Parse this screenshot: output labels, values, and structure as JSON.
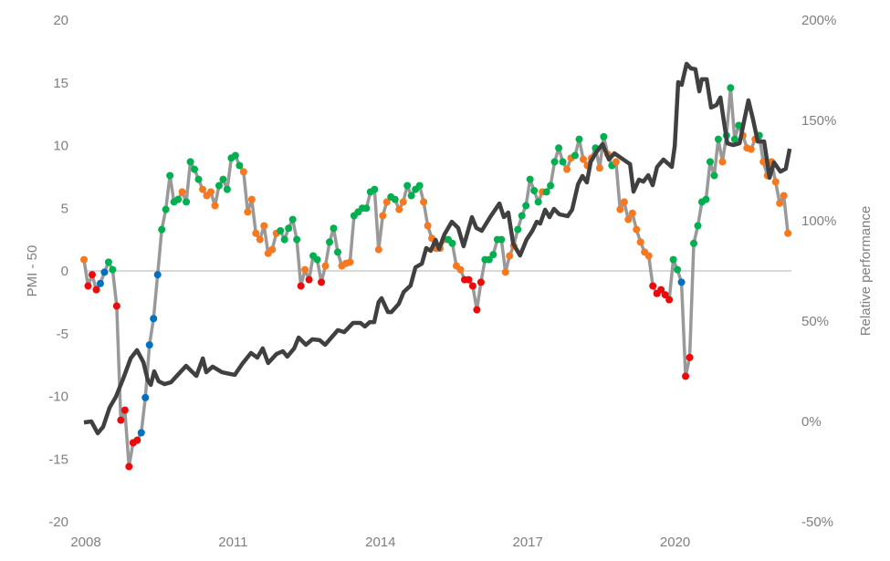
{
  "chart_data": {
    "type": "line",
    "title": "",
    "xlabel": "",
    "ylabel": "PMI - 50",
    "ylabel_right": "Relative performance",
    "x_ticks": [
      "2008",
      "2011",
      "2014",
      "2017",
      "2020"
    ],
    "x_tick_values": [
      2008,
      2011,
      2014,
      2017,
      2020
    ],
    "xlim": [
      2008,
      2022.4
    ],
    "ylim": [
      -20,
      20
    ],
    "y_ticks": [
      "20",
      "15",
      "10",
      "5",
      "0",
      "-5",
      "-10",
      "-15",
      "-20"
    ],
    "y_tick_values": [
      20,
      15,
      10,
      5,
      0,
      -5,
      -10,
      -15,
      -20
    ],
    "ylim_right": [
      -50,
      200
    ],
    "y_ticks_right": [
      "200%",
      "150%",
      "100%",
      "50%",
      "0%",
      "-50%"
    ],
    "y_tick_values_right": [
      200,
      150,
      100,
      50,
      0,
      -50
    ],
    "zero_line": true,
    "grid": false,
    "legend": "none",
    "category_colors": {
      "O": "#f7791f",
      "G": "#00b050",
      "R": "#ec0a0a",
      "B": "#0070c0"
    },
    "line_colors": {
      "pmi": "#999999",
      "relative": "#404040"
    },
    "series": [
      {
        "name": "PMI - 50",
        "axis": "left",
        "start": 2008,
        "frequency": "monthly",
        "values": [
          0.9,
          -1.2,
          -0.3,
          -1.5,
          -1.0,
          -0.1,
          0.7,
          0.1,
          -2.8,
          -11.9,
          -11.1,
          -15.6,
          -13.7,
          -13.5,
          -12.9,
          -10.1,
          -5.9,
          -3.8,
          -0.3,
          3.3,
          4.9,
          7.6,
          5.5,
          5.7,
          6.3,
          5.5,
          8.7,
          8.1,
          7.3,
          6.5,
          6.0,
          6.3,
          5.2,
          6.8,
          7.3,
          6.5,
          9.0,
          9.2,
          8.4,
          7.9,
          4.7,
          5.7,
          3.0,
          2.5,
          3.6,
          1.4,
          1.7,
          3.0,
          3.2,
          2.5,
          3.4,
          4.1,
          2.5,
          -1.2,
          0.1,
          -0.7,
          1.2,
          0.9,
          -0.9,
          0.4,
          2.3,
          3.4,
          1.5,
          0.4,
          0.6,
          0.7,
          4.4,
          4.7,
          5.0,
          5.0,
          6.3,
          6.5,
          1.7,
          4.4,
          5.5,
          5.9,
          5.7,
          4.9,
          5.5,
          6.8,
          6.0,
          6.5,
          6.8,
          5.5,
          3.6,
          2.6,
          1.8,
          1.8,
          2.5,
          2.5,
          2.2,
          0.4,
          0.1,
          -0.7,
          -0.7,
          -1.2,
          -3.1,
          -0.9,
          0.9,
          0.9,
          1.3,
          2.5,
          2.5,
          -0.1,
          1.2,
          2.0,
          3.3,
          4.4,
          5.2,
          7.3,
          6.4,
          5.5,
          6.3,
          6.3,
          6.8,
          8.7,
          9.8,
          8.7,
          8.1,
          9.0,
          9.2,
          10.5,
          8.9,
          8.4,
          9.0,
          9.8,
          8.2,
          10.7,
          9.3,
          8.4,
          8.7,
          4.9,
          5.5,
          4.1,
          4.6,
          3.3,
          2.3,
          1.5,
          1.2,
          -1.2,
          -1.8,
          -1.5,
          -1.9,
          -2.3,
          0.9,
          0.1,
          -0.9,
          -8.4,
          -6.9,
          2.2,
          3.6,
          5.5,
          5.7,
          8.7,
          7.6,
          10.5,
          8.7,
          10.8,
          14.6,
          10.5,
          11.6,
          10.8,
          9.8,
          9.7,
          10.5,
          10.8,
          8.7,
          7.6,
          8.7,
          7.1,
          5.4,
          6.0,
          3.0
        ],
        "categories": "ORRRBBGGRRRRRRBBBBBGGGGGOGGGGOOOOGGGGGGOOOOOOOOOGGGGGRORGGROGGGOOOGGGGGGOOOGGOOGGGGOOOOOOGGOORRRRRGGGGGOOOGGGGGGOGGGGGOOGGOOOGOGOGOOOOOOOOORRRRRGGBRRGGGGGGGOGGGGOOOOGOOOOOOO"
      },
      {
        "name": "Relative performance",
        "axis": "right",
        "unit": "%",
        "points": [
          [
            2008.0,
            -0.5
          ],
          [
            2008.15,
            0
          ],
          [
            2008.28,
            -5.9
          ],
          [
            2008.39,
            -2.7
          ],
          [
            2008.52,
            6.8
          ],
          [
            2008.65,
            12.3
          ],
          [
            2008.8,
            21.4
          ],
          [
            2008.95,
            31.4
          ],
          [
            2009.08,
            35.5
          ],
          [
            2009.21,
            29.5
          ],
          [
            2009.3,
            20.5
          ],
          [
            2009.36,
            18.2
          ],
          [
            2009.43,
            25.0
          ],
          [
            2009.52,
            20.0
          ],
          [
            2009.64,
            18.6
          ],
          [
            2009.77,
            19.5
          ],
          [
            2009.91,
            23.2
          ],
          [
            2010.08,
            27.7
          ],
          [
            2010.19,
            25.0
          ],
          [
            2010.29,
            22.7
          ],
          [
            2010.42,
            31.4
          ],
          [
            2010.49,
            24.5
          ],
          [
            2010.62,
            27.3
          ],
          [
            2010.81,
            24.5
          ],
          [
            2011.07,
            23.2
          ],
          [
            2011.22,
            28.6
          ],
          [
            2011.4,
            34.1
          ],
          [
            2011.53,
            31.8
          ],
          [
            2011.64,
            36.4
          ],
          [
            2011.75,
            29.1
          ],
          [
            2011.92,
            33.6
          ],
          [
            2012.05,
            35.0
          ],
          [
            2012.14,
            32.3
          ],
          [
            2012.28,
            36.4
          ],
          [
            2012.37,
            41.8
          ],
          [
            2012.52,
            38.2
          ],
          [
            2012.65,
            40.9
          ],
          [
            2012.8,
            40.5
          ],
          [
            2012.91,
            38.2
          ],
          [
            2013.17,
            45.5
          ],
          [
            2013.3,
            44.5
          ],
          [
            2013.48,
            49.1
          ],
          [
            2013.63,
            49.1
          ],
          [
            2013.72,
            47.3
          ],
          [
            2013.82,
            49.5
          ],
          [
            2013.91,
            49.5
          ],
          [
            2014.0,
            59.5
          ],
          [
            2014.06,
            61.4
          ],
          [
            2014.19,
            54.5
          ],
          [
            2014.26,
            54.5
          ],
          [
            2014.41,
            58.6
          ],
          [
            2014.51,
            64.5
          ],
          [
            2014.65,
            67.7
          ],
          [
            2014.75,
            76.8
          ],
          [
            2014.88,
            78.6
          ],
          [
            2014.97,
            86.4
          ],
          [
            2015.06,
            85.0
          ],
          [
            2015.16,
            90.5
          ],
          [
            2015.23,
            85.9
          ],
          [
            2015.34,
            93.2
          ],
          [
            2015.49,
            99.5
          ],
          [
            2015.62,
            96.4
          ],
          [
            2015.73,
            87.3
          ],
          [
            2015.9,
            101.8
          ],
          [
            2015.99,
            96.4
          ],
          [
            2016.1,
            95.0
          ],
          [
            2016.27,
            101.8
          ],
          [
            2016.46,
            108.6
          ],
          [
            2016.55,
            101.8
          ],
          [
            2016.64,
            104.1
          ],
          [
            2016.74,
            88.6
          ],
          [
            2016.88,
            82.7
          ],
          [
            2017.01,
            90.5
          ],
          [
            2017.13,
            95.0
          ],
          [
            2017.22,
            99.5
          ],
          [
            2017.29,
            98.6
          ],
          [
            2017.39,
            105.5
          ],
          [
            2017.48,
            101.8
          ],
          [
            2017.57,
            105.9
          ],
          [
            2017.68,
            103.2
          ],
          [
            2017.85,
            102.3
          ],
          [
            2017.94,
            105.5
          ],
          [
            2018.06,
            118.2
          ],
          [
            2018.15,
            122.3
          ],
          [
            2018.24,
            119.1
          ],
          [
            2018.32,
            129.5
          ],
          [
            2018.43,
            134.1
          ],
          [
            2018.56,
            138.2
          ],
          [
            2018.69,
            130.5
          ],
          [
            2018.8,
            133.6
          ],
          [
            2019.12,
            128.2
          ],
          [
            2019.19,
            114.5
          ],
          [
            2019.3,
            120.5
          ],
          [
            2019.39,
            119.5
          ],
          [
            2019.49,
            122.7
          ],
          [
            2019.58,
            117.7
          ],
          [
            2019.67,
            126.8
          ],
          [
            2019.8,
            130.5
          ],
          [
            2019.97,
            126.8
          ],
          [
            2020.03,
            137.3
          ],
          [
            2020.1,
            169.1
          ],
          [
            2020.17,
            167.7
          ],
          [
            2020.27,
            178.2
          ],
          [
            2020.36,
            175.9
          ],
          [
            2020.45,
            175.5
          ],
          [
            2020.53,
            164.5
          ],
          [
            2020.58,
            170.5
          ],
          [
            2020.68,
            170.5
          ],
          [
            2020.77,
            156.4
          ],
          [
            2020.88,
            157.7
          ],
          [
            2020.96,
            161.4
          ],
          [
            2021.03,
            149.5
          ],
          [
            2021.1,
            138.6
          ],
          [
            2021.22,
            137.7
          ],
          [
            2021.35,
            138.6
          ],
          [
            2021.44,
            149.5
          ],
          [
            2021.53,
            160.0
          ],
          [
            2021.62,
            150.9
          ],
          [
            2021.72,
            139.5
          ],
          [
            2021.85,
            139.5
          ],
          [
            2021.96,
            121.4
          ],
          [
            2022.05,
            129.1
          ],
          [
            2022.18,
            124.5
          ],
          [
            2022.29,
            125.9
          ],
          [
            2022.37,
            135.9
          ]
        ]
      }
    ]
  }
}
